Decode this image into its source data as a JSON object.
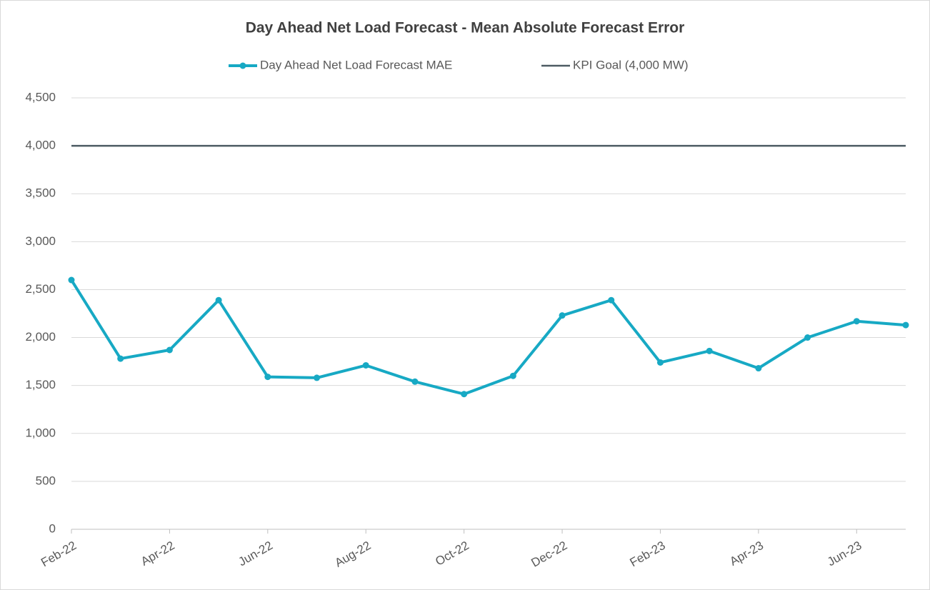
{
  "chart_data": {
    "type": "line",
    "title": "Day Ahead Net Load Forecast - Mean Absolute Forecast Error",
    "categories": [
      "Feb-22",
      null,
      "Apr-22",
      null,
      "Jun-22",
      null,
      "Aug-22",
      null,
      "Oct-22",
      null,
      "Dec-22",
      null,
      "Feb-23",
      null,
      "Apr-23",
      null,
      "Jun-23",
      null
    ],
    "series": [
      {
        "name": "Day Ahead Net Load Forecast MAE",
        "color": "#17a9c4",
        "markers": true,
        "values": [
          2600,
          1780,
          1870,
          2390,
          1590,
          1580,
          1710,
          1540,
          1410,
          1600,
          2230,
          2390,
          1740,
          1860,
          1680,
          2000,
          2170,
          2130
        ]
      },
      {
        "name": "KPI Goal (4,000 MW)",
        "color": "#4d5b63",
        "markers": false,
        "values": [
          4000,
          4000,
          4000,
          4000,
          4000,
          4000,
          4000,
          4000,
          4000,
          4000,
          4000,
          4000,
          4000,
          4000,
          4000,
          4000,
          4000,
          4000
        ]
      }
    ],
    "ylim": [
      0,
      4500
    ],
    "yticks": [
      0,
      500,
      {
        "value": 1000,
        "label": "1,000"
      },
      {
        "value": 1500,
        "label": "1,500"
      },
      {
        "value": 2000,
        "label": "2,000"
      },
      {
        "value": 2500,
        "label": "2,500"
      },
      {
        "value": 3000,
        "label": "3,000"
      },
      {
        "value": 3500,
        "label": "3,500"
      },
      {
        "value": 4000,
        "label": "4,000"
      },
      {
        "value": 4500,
        "label": "4,500"
      }
    ],
    "grid": true,
    "legend": "top"
  }
}
